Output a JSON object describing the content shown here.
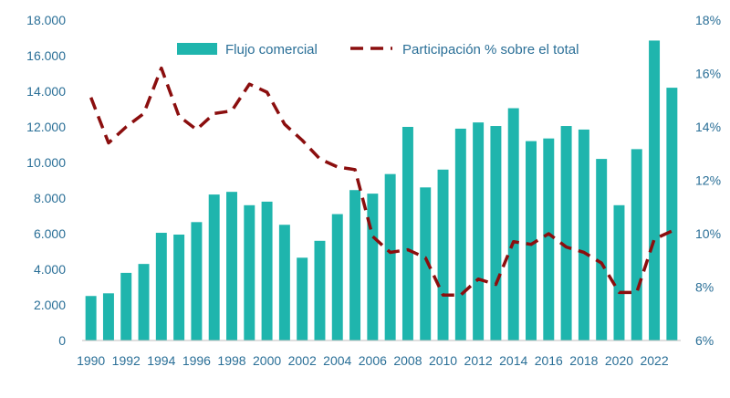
{
  "colors": {
    "bar": "#1fb5ad",
    "line": "#8b0e0e",
    "axis_text": "#2a6f97",
    "axis_line": "#bfbfbf"
  },
  "chart_data": {
    "type": "bar",
    "title": "",
    "xlabel": "",
    "ylabel": "",
    "categories": [
      "1990",
      "1991",
      "1992",
      "1993",
      "1994",
      "1995",
      "1996",
      "1997",
      "1998",
      "1999",
      "2000",
      "2001",
      "2002",
      "2003",
      "2004",
      "2005",
      "2006",
      "2007",
      "2008",
      "2009",
      "2010",
      "2011",
      "2012",
      "2013",
      "2014",
      "2015",
      "2016",
      "2017",
      "2018",
      "2019",
      "2020",
      "2021",
      "2022",
      "2023"
    ],
    "x_tick_labels": [
      "1990",
      "1992",
      "1994",
      "1996",
      "1998",
      "2000",
      "2002",
      "2004",
      "2006",
      "2008",
      "2010",
      "2012",
      "2014",
      "2016",
      "2018",
      "2020",
      "2022"
    ],
    "ylim": [
      0,
      18000
    ],
    "y2lim": [
      6,
      18
    ],
    "y_tick_labels": [
      "0",
      "2.000",
      "4.000",
      "6.000",
      "8.000",
      "10.000",
      "12.000",
      "14.000",
      "16.000",
      "18.000"
    ],
    "y2_tick_labels": [
      "6%",
      "8%",
      "10%",
      "12%",
      "14%",
      "16%",
      "18%"
    ],
    "series": [
      {
        "name": "Flujo comercial",
        "type": "bar",
        "axis": "left",
        "values": [
          2500,
          2650,
          3800,
          4300,
          6050,
          5950,
          6650,
          8200,
          8350,
          7600,
          7800,
          6500,
          4650,
          5600,
          7100,
          8450,
          8250,
          9350,
          12000,
          8600,
          9600,
          11900,
          12250,
          12050,
          13050,
          11200,
          11350,
          12050,
          11850,
          10200,
          7600,
          10750,
          16850,
          14200
        ]
      },
      {
        "name": "Participación % sobre el total",
        "type": "line",
        "axis": "right",
        "values": [
          15.1,
          13.4,
          14.0,
          14.5,
          16.2,
          14.4,
          13.9,
          14.5,
          14.6,
          15.6,
          15.3,
          14.1,
          13.5,
          12.8,
          12.5,
          12.4,
          9.9,
          9.3,
          9.4,
          9.1,
          7.7,
          7.7,
          8.3,
          8.1,
          9.7,
          9.6,
          10.0,
          9.5,
          9.3,
          8.9,
          7.8,
          7.8,
          9.8,
          10.1
        ]
      }
    ],
    "legend": {
      "position": "top",
      "items": [
        "Flujo comercial",
        "Participación % sobre el total"
      ]
    }
  }
}
